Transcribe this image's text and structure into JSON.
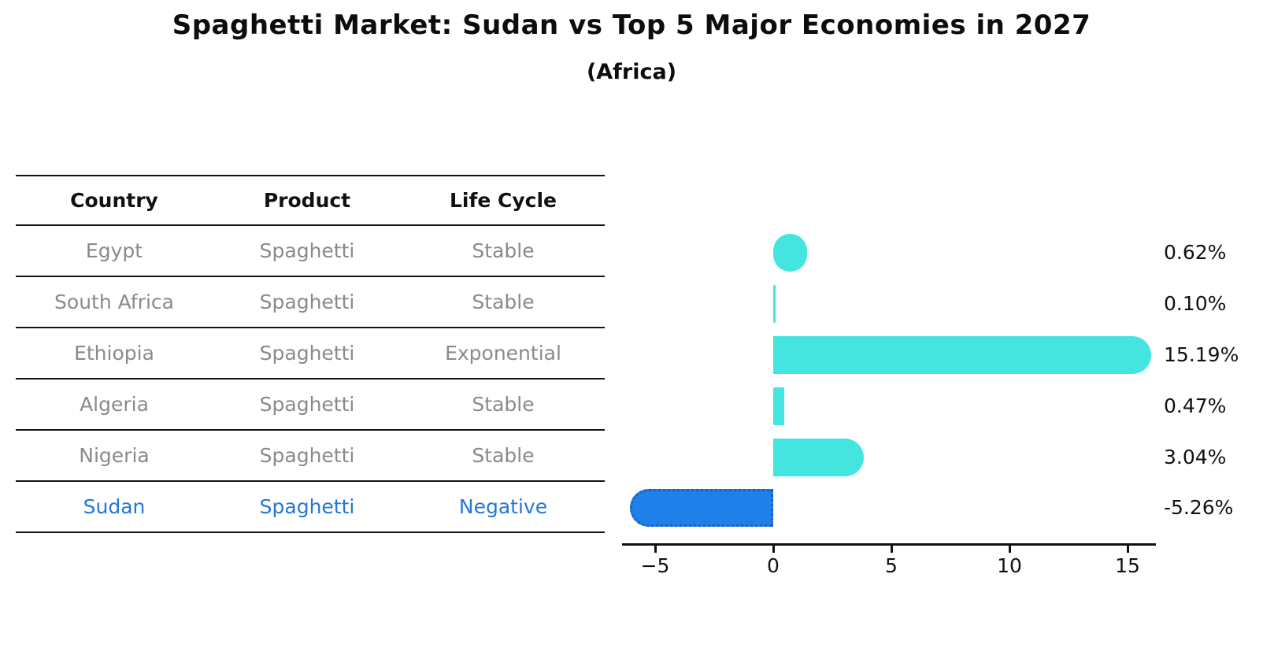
{
  "chart_data": {
    "type": "bar",
    "orientation": "horizontal",
    "title": "Spaghetti Market: Sudan vs Top 5 Major Economies in 2027",
    "subtitle": "(Africa)",
    "categories": [
      "Egypt",
      "South Africa",
      "Ethiopia",
      "Algeria",
      "Nigeria",
      "Sudan"
    ],
    "values": [
      0.62,
      0.1,
      15.19,
      0.47,
      3.04,
      -5.26
    ],
    "value_labels": [
      "0.62%",
      "0.10%",
      "15.19%",
      "0.47%",
      "3.04%",
      "-5.26%"
    ],
    "x_ticks": [
      -5,
      0,
      5,
      10,
      15
    ],
    "x_tick_labels": [
      "−5",
      "0",
      "5",
      "10",
      "15"
    ],
    "xlim": [
      -6.4,
      16.2
    ],
    "grid": false,
    "legend": false,
    "bar_color": "#43E5DE",
    "highlight_index": 5,
    "highlight_bar_color": "#1E80E8",
    "highlight_bar_edge": "#1A5FC4"
  },
  "table": {
    "headers": [
      "Country",
      "Product",
      "Life Cycle"
    ],
    "rows": [
      {
        "country": "Egypt",
        "product": "Spaghetti",
        "life_cycle": "Stable",
        "highlight": false
      },
      {
        "country": "South Africa",
        "product": "Spaghetti",
        "life_cycle": "Stable",
        "highlight": false
      },
      {
        "country": "Ethiopia",
        "product": "Spaghetti",
        "life_cycle": "Exponential",
        "highlight": false
      },
      {
        "country": "Algeria",
        "product": "Spaghetti",
        "life_cycle": "Stable",
        "highlight": false
      },
      {
        "country": "Nigeria",
        "product": "Spaghetti",
        "life_cycle": "Stable",
        "highlight": false
      },
      {
        "country": "Sudan",
        "product": "Spaghetti",
        "life_cycle": "Negative",
        "highlight": true
      }
    ]
  },
  "colors": {
    "table_text": "#8a8a8a",
    "header_text": "#111111",
    "highlight_text": "#2377D8",
    "line": "#141414",
    "axis": "#111111",
    "value_label_text": "#111111"
  }
}
